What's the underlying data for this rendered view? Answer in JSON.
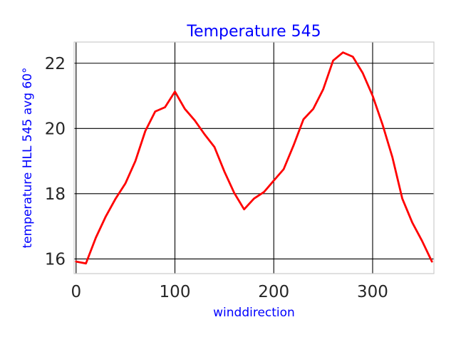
{
  "chart_data": {
    "type": "line",
    "title": "Temperature 545",
    "xlabel": "winddirection",
    "ylabel": "temperature HLL 545 avg 60°",
    "xlim": [
      -2,
      362
    ],
    "ylim": [
      15.55,
      22.65
    ],
    "xticks": [
      0,
      100,
      200,
      300
    ],
    "yticks": [
      16,
      18,
      20,
      22
    ],
    "xtick_labels": [
      "0",
      "100",
      "200",
      "300"
    ],
    "ytick_labels": [
      "16",
      "18",
      "20",
      "22"
    ],
    "grid": true,
    "series": [
      {
        "color": "#ff0000",
        "x": [
          0,
          10,
          20,
          30,
          40,
          50,
          60,
          70,
          80,
          90,
          100,
          110,
          120,
          130,
          140,
          150,
          160,
          170,
          180,
          190,
          200,
          210,
          220,
          230,
          240,
          250,
          260,
          270,
          280,
          290,
          300,
          310,
          320,
          330,
          340,
          350,
          360
        ],
        "y": [
          15.92,
          15.86,
          16.65,
          17.3,
          17.85,
          18.32,
          19.0,
          19.92,
          20.52,
          20.65,
          21.13,
          20.6,
          20.25,
          19.82,
          19.43,
          18.68,
          18.02,
          17.52,
          17.85,
          18.05,
          18.4,
          18.75,
          19.48,
          20.28,
          20.6,
          21.2,
          22.08,
          22.33,
          22.2,
          21.7,
          21.0,
          20.12,
          19.12,
          17.85,
          17.12,
          16.55,
          15.92
        ]
      }
    ]
  }
}
